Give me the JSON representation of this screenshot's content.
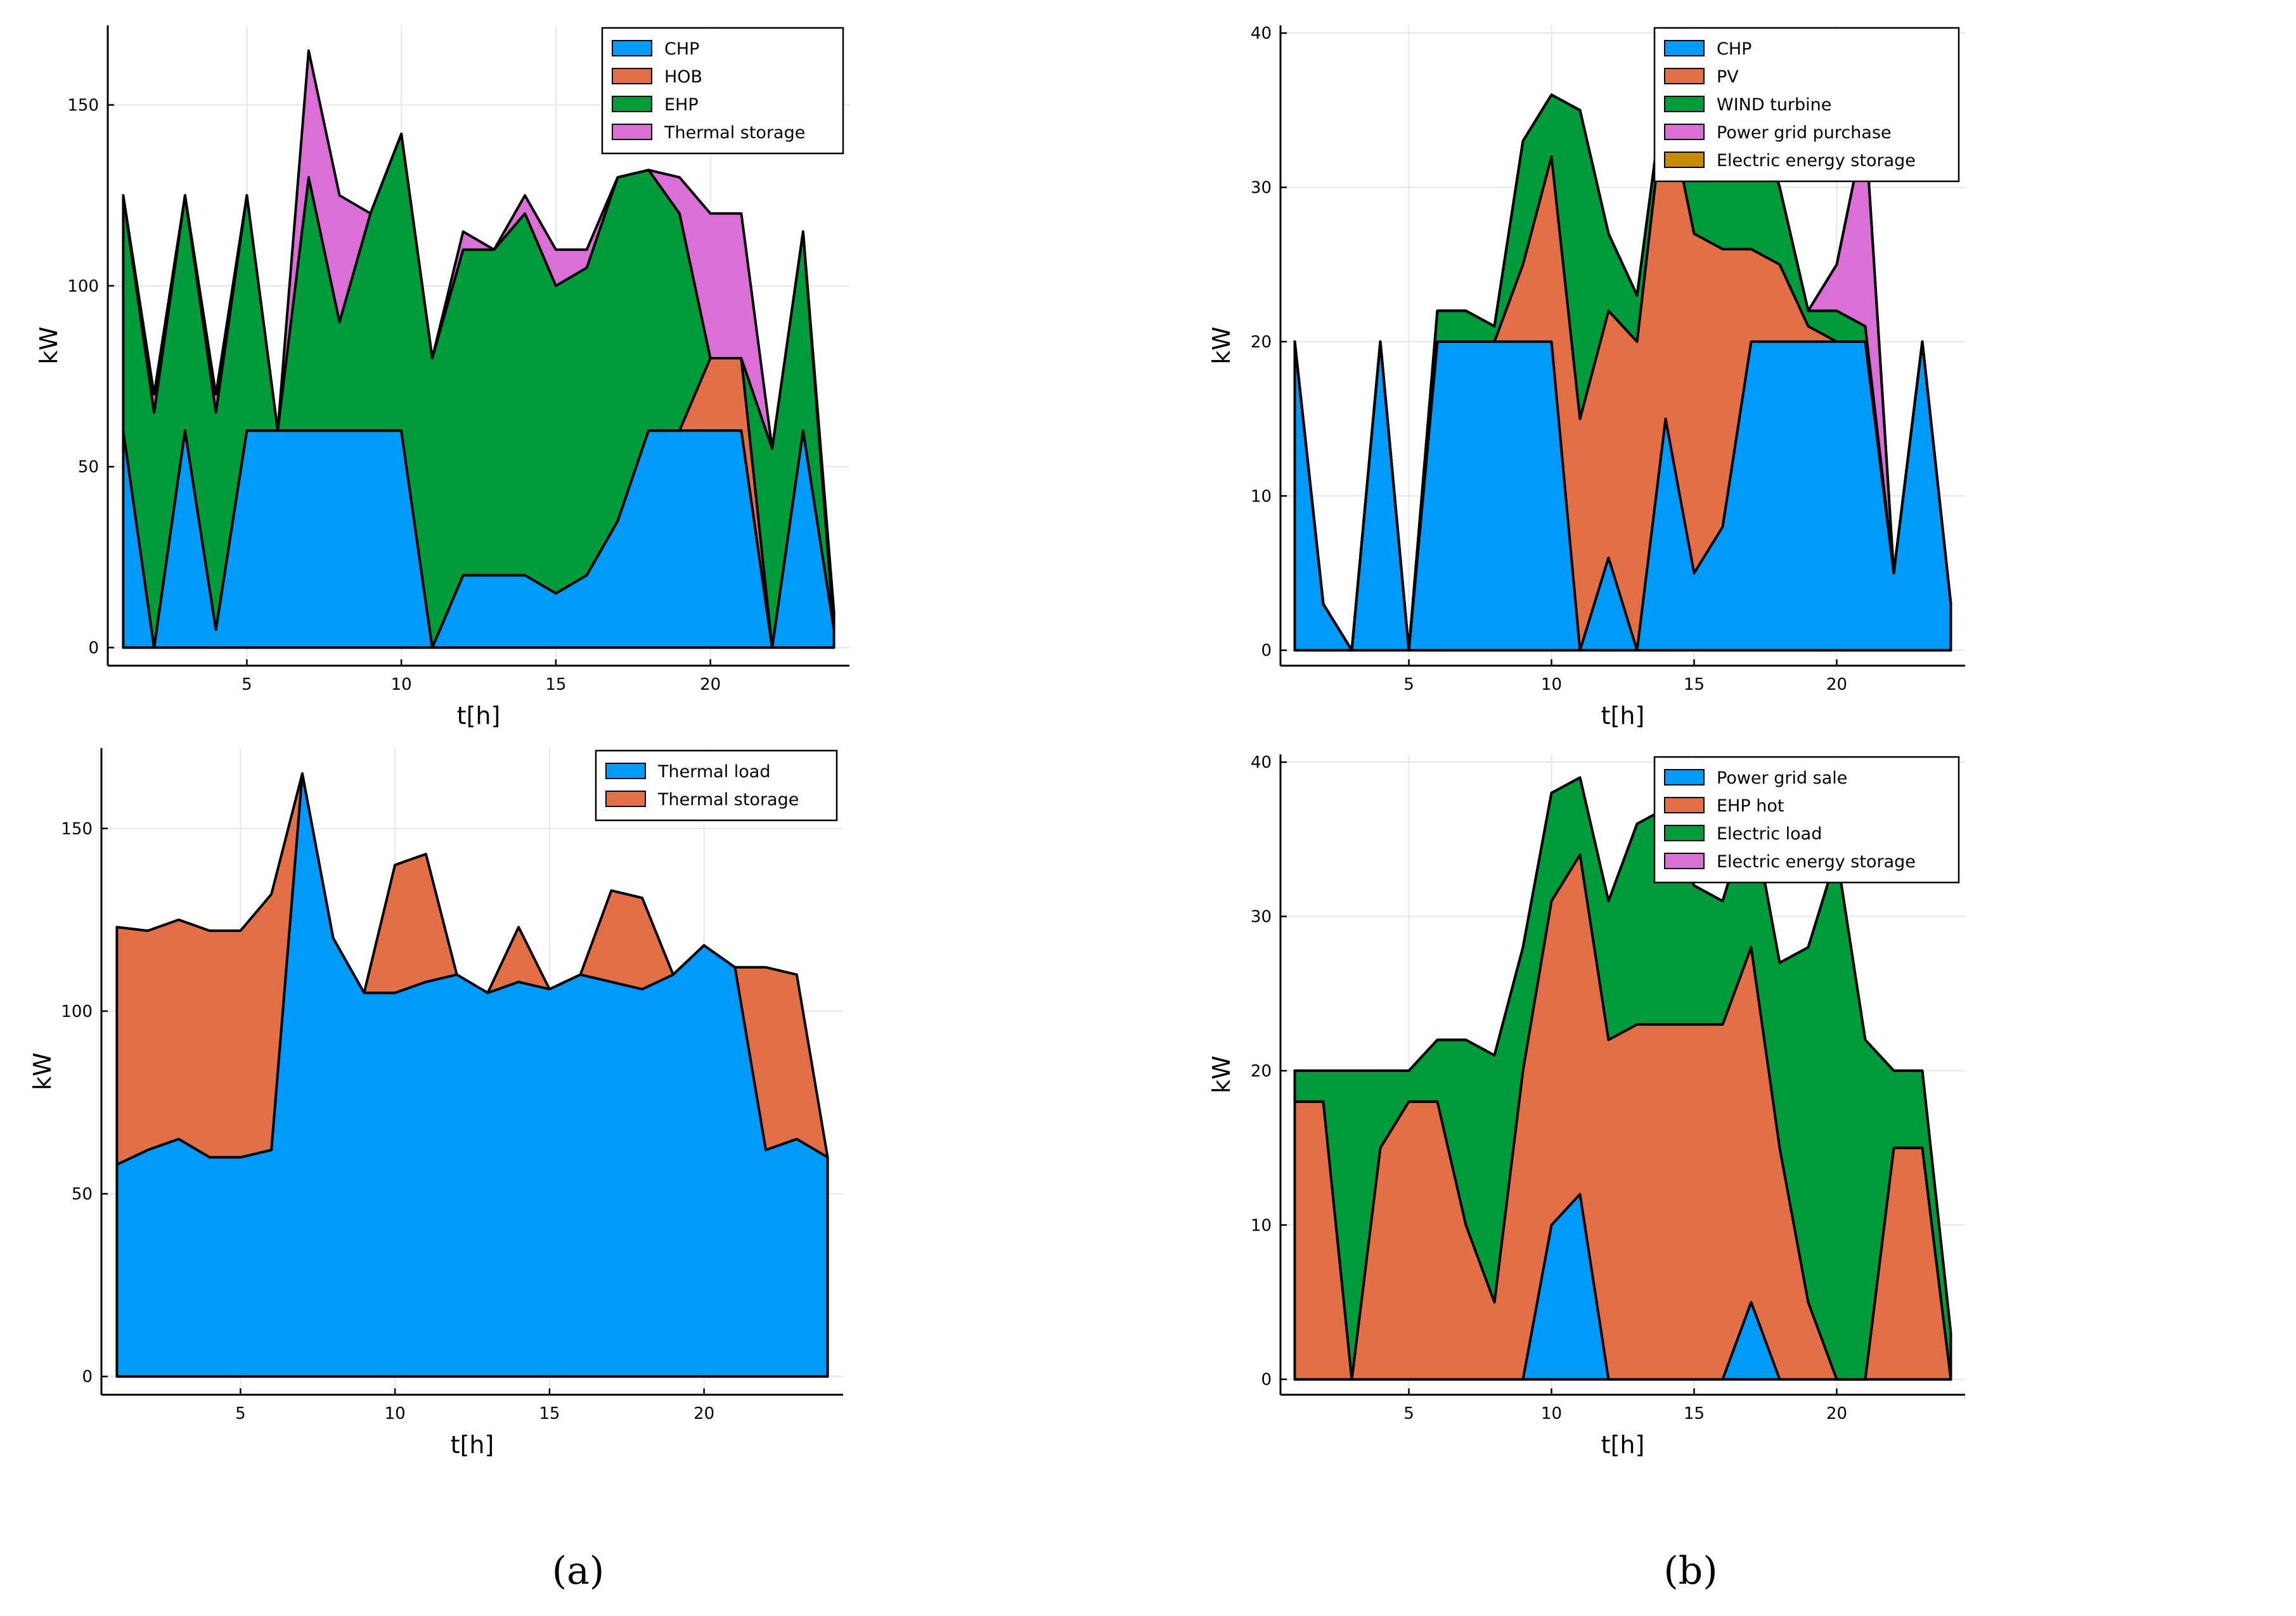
{
  "captions": {
    "a": "(a)",
    "b": "(b)"
  },
  "colors": {
    "blue": "#009af9",
    "orange": "#e26f46",
    "green": "#009b3a",
    "pink": "#da70d6",
    "olive": "#c68c00",
    "outline": "#000000"
  },
  "chart_data": [
    {
      "id": "ta",
      "type": "area",
      "stacked": true,
      "title": "",
      "xlabel": "t[h]",
      "ylabel": "kW",
      "xlim": [
        0.5,
        24.5
      ],
      "ylim": [
        -5,
        172
      ],
      "xticks": [
        5,
        10,
        15,
        20
      ],
      "yticks": [
        0,
        50,
        100,
        150
      ],
      "legend_position": "top-right",
      "x": [
        1,
        2,
        3,
        4,
        5,
        6,
        7,
        8,
        9,
        10,
        11,
        12,
        13,
        14,
        15,
        16,
        17,
        18,
        19,
        20,
        21,
        22,
        23,
        24
      ],
      "series": [
        {
          "name": "CHP",
          "color": "#009af9",
          "values": [
            60,
            0,
            60,
            5,
            60,
            60,
            60,
            60,
            60,
            60,
            0,
            20,
            20,
            20,
            15,
            20,
            35,
            60,
            60,
            60,
            60,
            0,
            60,
            5
          ]
        },
        {
          "name": "HOB",
          "color": "#e26f46",
          "values": [
            0,
            0,
            0,
            0,
            0,
            0,
            0,
            0,
            0,
            0,
            0,
            0,
            0,
            0,
            0,
            0,
            0,
            0,
            0,
            20,
            20,
            0,
            0,
            0
          ]
        },
        {
          "name": "EHP",
          "color": "#009b3a",
          "values": [
            65,
            65,
            65,
            60,
            65,
            0,
            70,
            30,
            60,
            82,
            80,
            90,
            90,
            100,
            85,
            85,
            95,
            72,
            60,
            0,
            0,
            55,
            55,
            0
          ]
        },
        {
          "name": "Thermal storage",
          "color": "#da70d6",
          "values": [
            0,
            5,
            0,
            5,
            0,
            0,
            35,
            35,
            0,
            0,
            0,
            5,
            0,
            5,
            10,
            5,
            0,
            0,
            10,
            40,
            40,
            0,
            0,
            5
          ]
        }
      ]
    },
    {
      "id": "tb",
      "type": "area",
      "stacked": true,
      "title": "",
      "xlabel": "t[h]",
      "ylabel": "kW",
      "xlim": [
        0.5,
        24.5
      ],
      "ylim": [
        -1,
        40.5
      ],
      "xticks": [
        5,
        10,
        15,
        20
      ],
      "yticks": [
        0,
        10,
        20,
        30,
        40
      ],
      "legend_position": "top-right",
      "x": [
        1,
        2,
        3,
        4,
        5,
        6,
        7,
        8,
        9,
        10,
        11,
        12,
        13,
        14,
        15,
        16,
        17,
        18,
        19,
        20,
        21,
        22,
        23,
        24
      ],
      "series": [
        {
          "name": "CHP",
          "color": "#009af9",
          "values": [
            20,
            3,
            0,
            20,
            0,
            20,
            20,
            20,
            20,
            20,
            0,
            6,
            0,
            15,
            5,
            8,
            20,
            20,
            20,
            20,
            20,
            5,
            20,
            3
          ]
        },
        {
          "name": "PV",
          "color": "#e26f46",
          "values": [
            0,
            0,
            0,
            0,
            0,
            0,
            0,
            0,
            5,
            12,
            15,
            16,
            20,
            21,
            22,
            18,
            6,
            5,
            1,
            0,
            0,
            0,
            0,
            0
          ]
        },
        {
          "name": "WIND turbine",
          "color": "#009b3a",
          "values": [
            0,
            0,
            0,
            0,
            0,
            2,
            2,
            1,
            8,
            4,
            20,
            5,
            3,
            1,
            5,
            5,
            10,
            5,
            1,
            2,
            1,
            0,
            0,
            0
          ]
        },
        {
          "name": "Power grid purchase",
          "color": "#da70d6",
          "values": [
            0,
            0,
            0,
            0,
            0,
            0,
            0,
            0,
            0,
            0,
            0,
            0,
            0,
            0,
            0,
            0,
            0,
            0,
            0,
            3,
            13,
            0,
            0,
            0
          ]
        },
        {
          "name": "Electric energy storage",
          "color": "#c68c00",
          "values": [
            0,
            0,
            0,
            0,
            0,
            0,
            0,
            0,
            0,
            0,
            0,
            0,
            0,
            0,
            0,
            0,
            0,
            0,
            0,
            0,
            0,
            0,
            0,
            0
          ]
        }
      ]
    },
    {
      "id": "ba",
      "type": "area",
      "stacked": true,
      "title": "",
      "xlabel": "t[h]",
      "ylabel": "kW",
      "xlim": [
        0.5,
        24.5
      ],
      "ylim": [
        -5,
        172
      ],
      "xticks": [
        5,
        10,
        15,
        20
      ],
      "yticks": [
        0,
        50,
        100,
        150
      ],
      "legend_position": "top-right",
      "x": [
        1,
        2,
        3,
        4,
        5,
        6,
        7,
        8,
        9,
        10,
        11,
        12,
        13,
        14,
        15,
        16,
        17,
        18,
        19,
        20,
        21,
        22,
        23,
        24
      ],
      "series": [
        {
          "name": "Thermal load",
          "color": "#009af9",
          "values": [
            58,
            62,
            65,
            60,
            60,
            62,
            165,
            120,
            105,
            105,
            108,
            110,
            105,
            108,
            106,
            110,
            108,
            106,
            110,
            118,
            112,
            62,
            65,
            60
          ]
        },
        {
          "name": "Thermal storage",
          "color": "#e26f46",
          "values": [
            65,
            60,
            60,
            62,
            62,
            70,
            0,
            0,
            0,
            35,
            35,
            0,
            0,
            15,
            0,
            0,
            25,
            25,
            0,
            0,
            0,
            50,
            45,
            0
          ]
        }
      ]
    },
    {
      "id": "bb",
      "type": "area",
      "stacked": true,
      "title": "",
      "xlabel": "t[h]",
      "ylabel": "kW",
      "xlim": [
        0.5,
        24.5
      ],
      "ylim": [
        -1,
        40.5
      ],
      "xticks": [
        5,
        10,
        15,
        20
      ],
      "yticks": [
        0,
        10,
        20,
        30,
        40
      ],
      "legend_position": "top-right",
      "x": [
        1,
        2,
        3,
        4,
        5,
        6,
        7,
        8,
        9,
        10,
        11,
        12,
        13,
        14,
        15,
        16,
        17,
        18,
        19,
        20,
        21,
        22,
        23,
        24
      ],
      "series": [
        {
          "name": "Power grid sale",
          "color": "#009af9",
          "values": [
            0,
            0,
            0,
            0,
            0,
            0,
            0,
            0,
            0,
            10,
            12,
            0,
            0,
            0,
            0,
            0,
            5,
            0,
            0,
            0,
            0,
            0,
            0,
            0
          ]
        },
        {
          "name": "EHP hot",
          "color": "#e26f46",
          "values": [
            18,
            18,
            0,
            15,
            18,
            18,
            10,
            5,
            20,
            21,
            22,
            22,
            23,
            23,
            23,
            23,
            23,
            15,
            5,
            0,
            0,
            15,
            15,
            0
          ]
        },
        {
          "name": "Electric load",
          "color": "#009b3a",
          "values": [
            2,
            2,
            20,
            5,
            2,
            4,
            12,
            16,
            8,
            7,
            5,
            9,
            13,
            14,
            9,
            8,
            9,
            12,
            23,
            34,
            22,
            5,
            5,
            3
          ]
        },
        {
          "name": "Electric energy storage",
          "color": "#da70d6",
          "values": [
            0,
            0,
            0,
            0,
            0,
            0,
            0,
            0,
            0,
            0,
            0,
            0,
            0,
            0,
            0,
            0,
            0,
            0,
            0,
            0,
            0,
            0,
            0,
            0
          ]
        }
      ]
    }
  ]
}
